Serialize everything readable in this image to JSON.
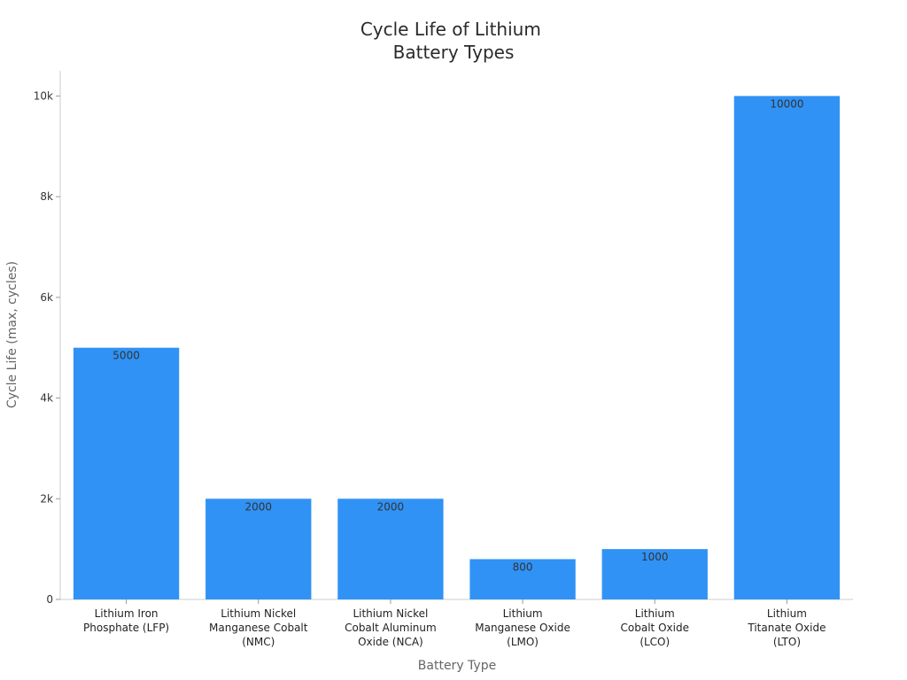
{
  "chart_data": {
    "type": "bar",
    "title": [
      "Cycle Life of Lithium",
      "Battery Types"
    ],
    "xlabel": "Battery Type",
    "ylabel": "Cycle Life (max, cycles)",
    "categories": [
      [
        "Lithium Iron",
        "Phosphate (LFP)"
      ],
      [
        "Lithium Nickel",
        "Manganese Cobalt",
        "(NMC)"
      ],
      [
        "Lithium Nickel",
        "Cobalt Aluminum",
        "Oxide (NCA)"
      ],
      [
        "Lithium",
        "Manganese Oxide",
        "(LMO)"
      ],
      [
        "Lithium",
        "Cobalt Oxide",
        "(LCO)"
      ],
      [
        "Lithium",
        "Titanate Oxide",
        "(LTO)"
      ]
    ],
    "values": [
      5000,
      2000,
      2000,
      800,
      1000,
      10000
    ],
    "value_labels": [
      "5000",
      "2000",
      "2000",
      "800",
      "1000",
      "10000"
    ],
    "ylim": [
      0,
      10500
    ],
    "yticks": [
      0,
      2000,
      4000,
      6000,
      8000,
      10000
    ],
    "ytick_labels": [
      "0",
      "2k",
      "4k",
      "6k",
      "8k",
      "10k"
    ],
    "bar_color": "#3092f5",
    "grid": false,
    "legend": "none"
  }
}
